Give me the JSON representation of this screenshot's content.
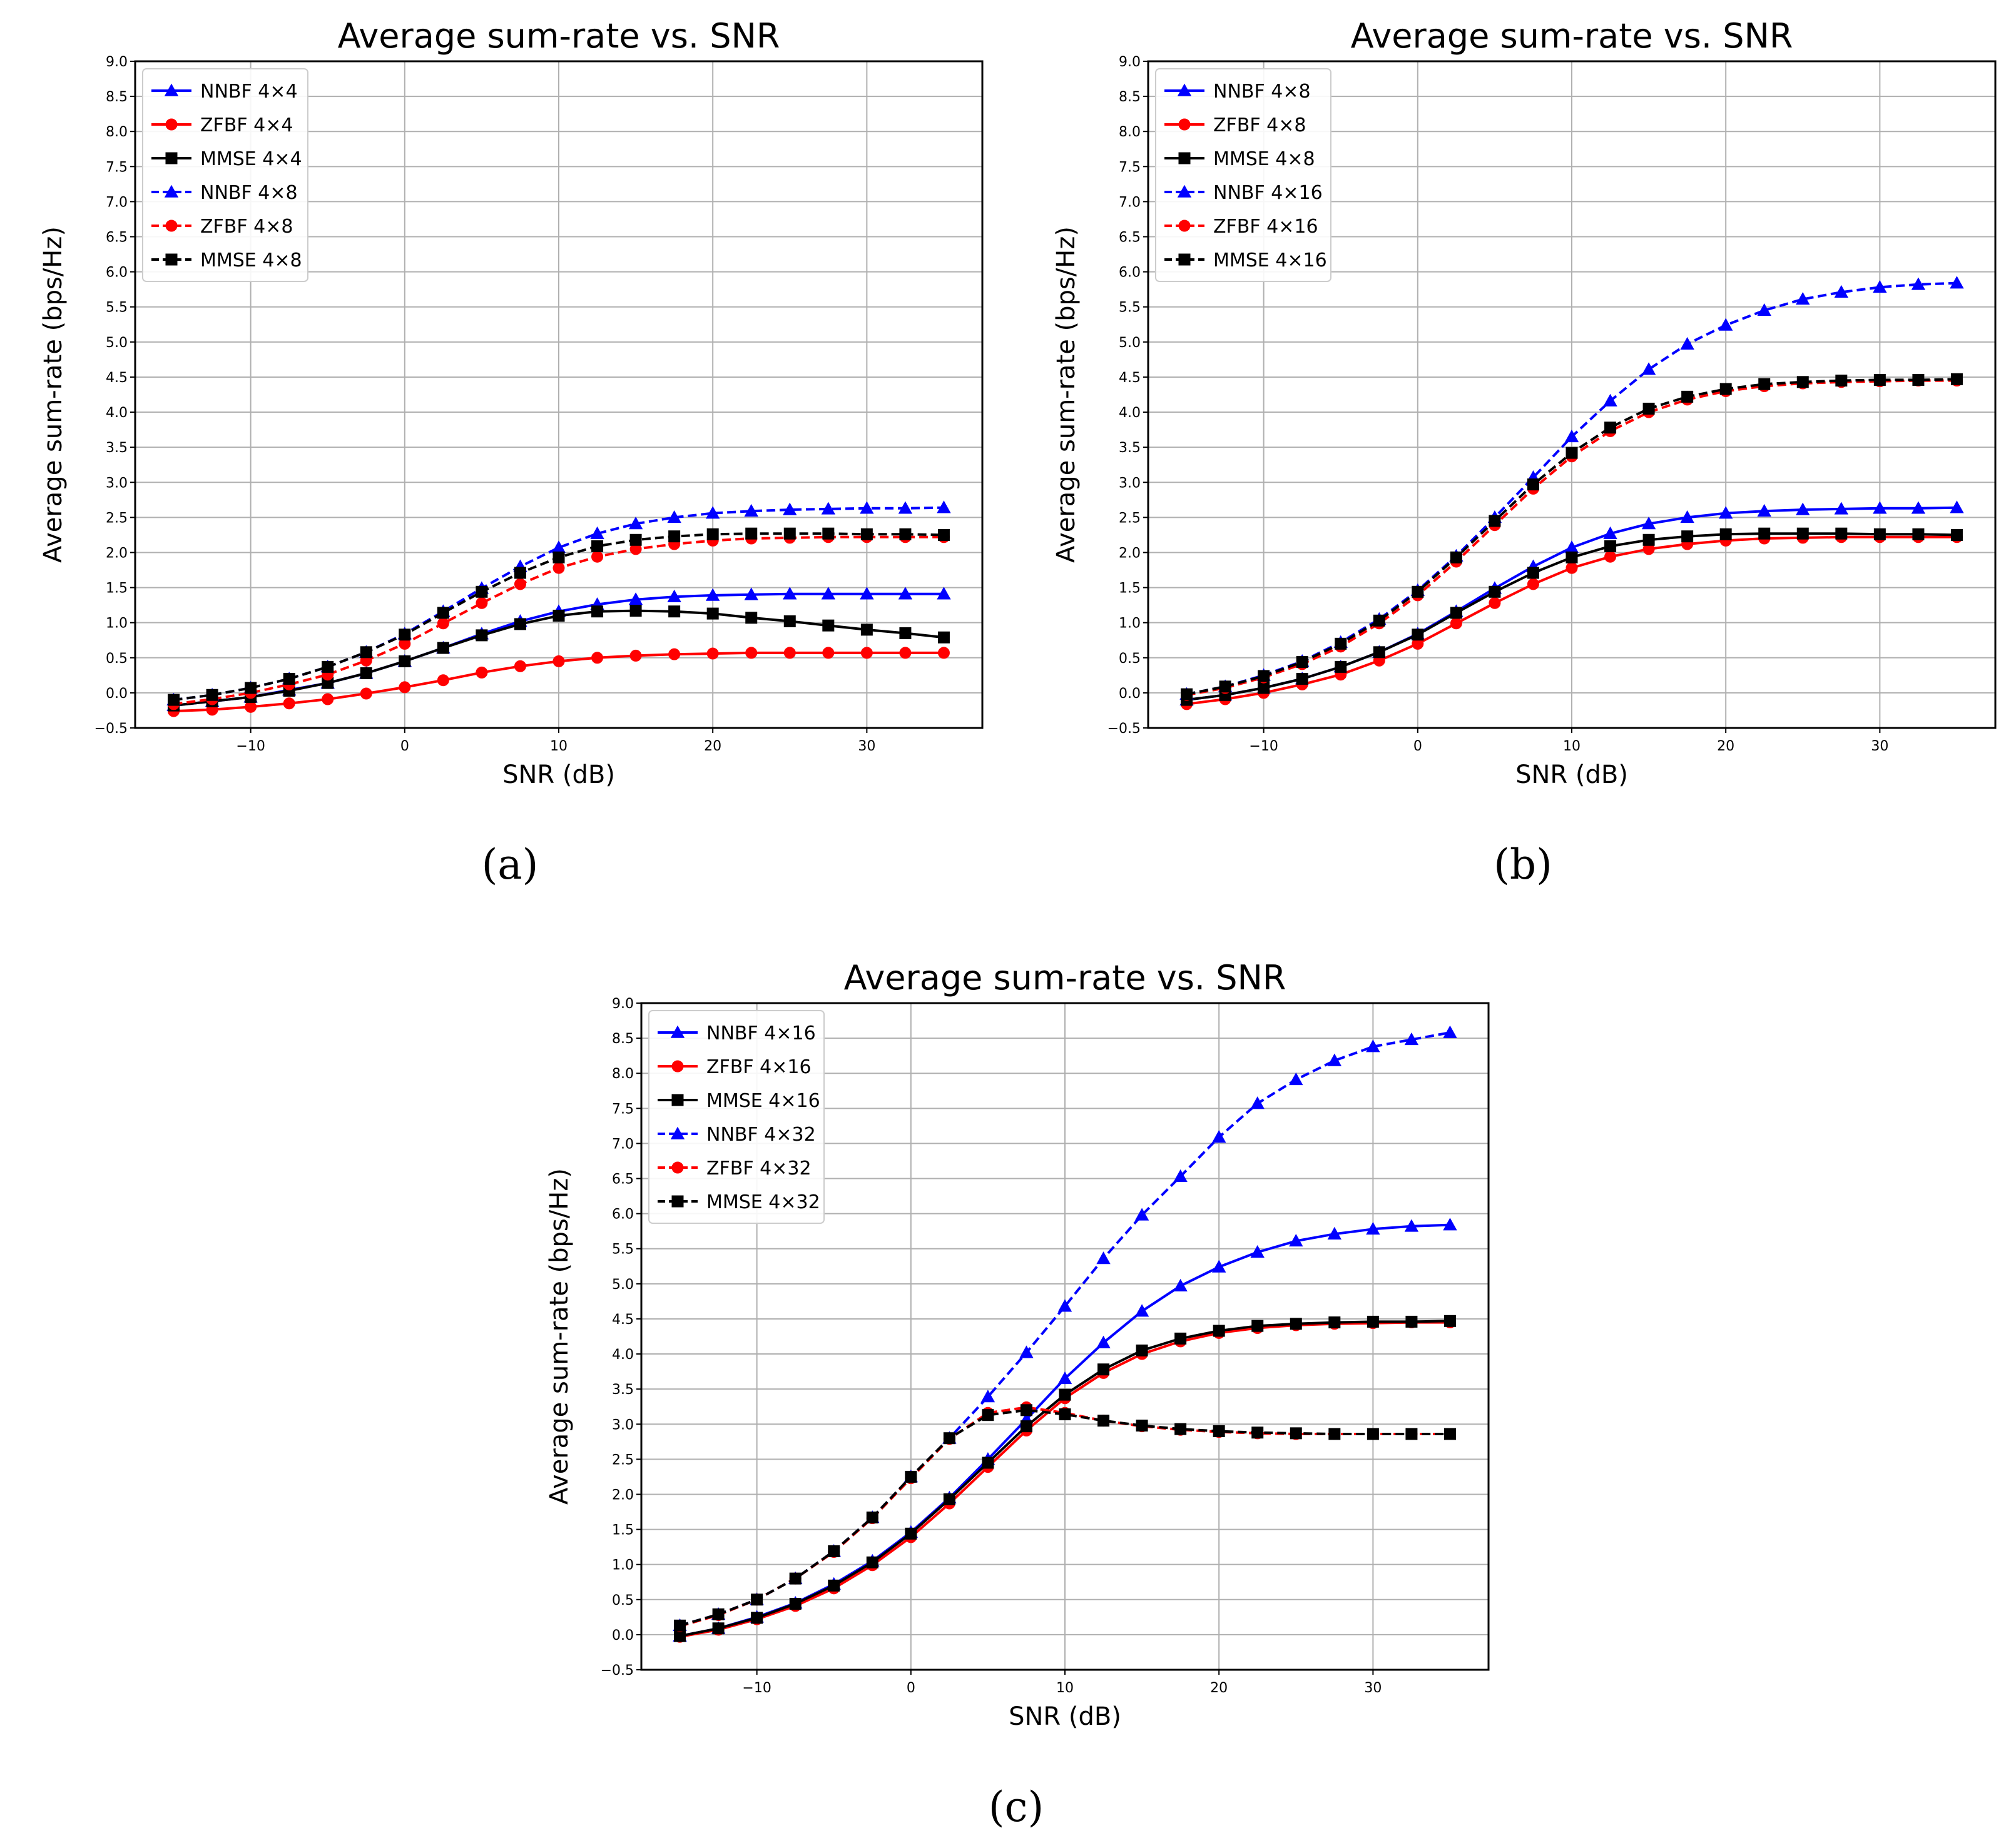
{
  "chart_data": [
    {
      "type": "line",
      "panel_label": "(a)",
      "title": "Average sum-rate vs. SNR",
      "xlabel": "SNR (dB)",
      "ylabel": "Average sum-rate (bps/Hz)",
      "xlim": [
        -17.5,
        37.5
      ],
      "ylim": [
        -0.5,
        9.0
      ],
      "xticks": [
        -10,
        0,
        10,
        20,
        30
      ],
      "xtick_labels": [
        "−10",
        "0",
        "10",
        "20",
        "30"
      ],
      "yticks": [
        -0.5,
        0.0,
        0.5,
        1.0,
        1.5,
        2.0,
        2.5,
        3.0,
        3.5,
        4.0,
        4.5,
        5.0,
        5.5,
        6.0,
        6.5,
        7.0,
        7.5,
        8.0,
        8.5,
        9.0
      ],
      "ytick_labels": [
        "−0.5",
        "0.0",
        "0.5",
        "1.0",
        "1.5",
        "2.0",
        "2.5",
        "3.0",
        "3.5",
        "4.0",
        "4.5",
        "5.0",
        "5.5",
        "6.0",
        "6.5",
        "7.0",
        "7.5",
        "8.0",
        "8.5",
        "9.0"
      ],
      "grid": true,
      "legend_position": "top-left",
      "x": [
        -15,
        -12.5,
        -10,
        -7.5,
        -5,
        -2.5,
        0,
        2.5,
        5,
        7.5,
        10,
        12.5,
        15,
        17.5,
        20,
        22.5,
        25,
        27.5,
        30,
        32.5,
        35
      ],
      "series": [
        {
          "name": "NNBF 4×4",
          "color": "#0000ff",
          "linestyle": "solid",
          "marker": "triangle",
          "values": [
            -0.18,
            -0.12,
            -0.06,
            0.04,
            0.14,
            0.28,
            0.45,
            0.64,
            0.84,
            1.02,
            1.16,
            1.26,
            1.33,
            1.37,
            1.39,
            1.4,
            1.41,
            1.41,
            1.41,
            1.41,
            1.41
          ]
        },
        {
          "name": "ZFBF 4×4",
          "color": "#ff0000",
          "linestyle": "solid",
          "marker": "circle",
          "values": [
            -0.26,
            -0.24,
            -0.2,
            -0.15,
            -0.09,
            -0.01,
            0.08,
            0.18,
            0.29,
            0.38,
            0.45,
            0.5,
            0.53,
            0.55,
            0.56,
            0.57,
            0.57,
            0.57,
            0.57,
            0.57,
            0.57
          ]
        },
        {
          "name": "MMSE 4×4",
          "color": "#000000",
          "linestyle": "solid",
          "marker": "square",
          "values": [
            -0.18,
            -0.12,
            -0.06,
            0.03,
            0.14,
            0.28,
            0.45,
            0.64,
            0.82,
            0.98,
            1.1,
            1.16,
            1.17,
            1.16,
            1.13,
            1.07,
            1.02,
            0.96,
            0.9,
            0.85,
            0.79
          ]
        },
        {
          "name": "NNBF 4×8",
          "color": "#0000ff",
          "linestyle": "dashed",
          "marker": "triangle",
          "values": [
            -0.1,
            -0.03,
            0.07,
            0.2,
            0.37,
            0.58,
            0.84,
            1.16,
            1.49,
            1.8,
            2.07,
            2.27,
            2.41,
            2.5,
            2.56,
            2.59,
            2.61,
            2.62,
            2.63,
            2.63,
            2.64
          ]
        },
        {
          "name": "ZFBF 4×8",
          "color": "#ff0000",
          "linestyle": "dashed",
          "marker": "circle",
          "values": [
            -0.16,
            -0.09,
            0.0,
            0.12,
            0.26,
            0.46,
            0.7,
            0.99,
            1.28,
            1.55,
            1.78,
            1.94,
            2.05,
            2.12,
            2.17,
            2.2,
            2.21,
            2.22,
            2.22,
            2.22,
            2.22
          ]
        },
        {
          "name": "MMSE 4×8",
          "color": "#000000",
          "linestyle": "dashed",
          "marker": "square",
          "values": [
            -0.1,
            -0.03,
            0.07,
            0.2,
            0.37,
            0.58,
            0.83,
            1.14,
            1.44,
            1.71,
            1.93,
            2.09,
            2.18,
            2.23,
            2.26,
            2.27,
            2.27,
            2.27,
            2.26,
            2.26,
            2.25
          ]
        }
      ]
    },
    {
      "type": "line",
      "panel_label": "(b)",
      "title": "Average sum-rate vs. SNR",
      "xlabel": "SNR (dB)",
      "ylabel": "Average sum-rate (bps/Hz)",
      "xlim": [
        -17.5,
        37.5
      ],
      "ylim": [
        -0.5,
        9.0
      ],
      "xticks": [
        -10,
        0,
        10,
        20,
        30
      ],
      "xtick_labels": [
        "−10",
        "0",
        "10",
        "20",
        "30"
      ],
      "yticks": [
        -0.5,
        0.0,
        0.5,
        1.0,
        1.5,
        2.0,
        2.5,
        3.0,
        3.5,
        4.0,
        4.5,
        5.0,
        5.5,
        6.0,
        6.5,
        7.0,
        7.5,
        8.0,
        8.5,
        9.0
      ],
      "ytick_labels": [
        "−0.5",
        "0.0",
        "0.5",
        "1.0",
        "1.5",
        "2.0",
        "2.5",
        "3.0",
        "3.5",
        "4.0",
        "4.5",
        "5.0",
        "5.5",
        "6.0",
        "6.5",
        "7.0",
        "7.5",
        "8.0",
        "8.5",
        "9.0"
      ],
      "grid": true,
      "legend_position": "top-left",
      "x": [
        -15,
        -12.5,
        -10,
        -7.5,
        -5,
        -2.5,
        0,
        2.5,
        5,
        7.5,
        10,
        12.5,
        15,
        17.5,
        20,
        22.5,
        25,
        27.5,
        30,
        32.5,
        35
      ],
      "series": [
        {
          "name": "NNBF 4×8",
          "color": "#0000ff",
          "linestyle": "solid",
          "marker": "triangle",
          "values": [
            -0.1,
            -0.03,
            0.07,
            0.2,
            0.37,
            0.58,
            0.84,
            1.16,
            1.49,
            1.8,
            2.07,
            2.27,
            2.41,
            2.5,
            2.56,
            2.59,
            2.61,
            2.62,
            2.63,
            2.63,
            2.64
          ]
        },
        {
          "name": "ZFBF 4×8",
          "color": "#ff0000",
          "linestyle": "solid",
          "marker": "circle",
          "values": [
            -0.16,
            -0.09,
            0.0,
            0.12,
            0.26,
            0.46,
            0.7,
            0.99,
            1.28,
            1.55,
            1.78,
            1.94,
            2.05,
            2.12,
            2.17,
            2.2,
            2.21,
            2.22,
            2.22,
            2.22,
            2.22
          ]
        },
        {
          "name": "MMSE 4×8",
          "color": "#000000",
          "linestyle": "solid",
          "marker": "square",
          "values": [
            -0.1,
            -0.03,
            0.07,
            0.2,
            0.37,
            0.58,
            0.83,
            1.14,
            1.44,
            1.71,
            1.93,
            2.09,
            2.18,
            2.23,
            2.26,
            2.27,
            2.27,
            2.27,
            2.26,
            2.26,
            2.25
          ]
        },
        {
          "name": "NNBF 4×16",
          "color": "#0000ff",
          "linestyle": "dashed",
          "marker": "triangle",
          "values": [
            -0.02,
            0.09,
            0.25,
            0.45,
            0.72,
            1.05,
            1.46,
            1.95,
            2.5,
            3.07,
            3.65,
            4.16,
            4.61,
            4.97,
            5.24,
            5.45,
            5.61,
            5.71,
            5.78,
            5.82,
            5.84
          ]
        },
        {
          "name": "ZFBF 4×16",
          "color": "#ff0000",
          "linestyle": "dashed",
          "marker": "circle",
          "values": [
            -0.03,
            0.07,
            0.22,
            0.41,
            0.66,
            0.99,
            1.39,
            1.87,
            2.39,
            2.91,
            3.37,
            3.73,
            4.0,
            4.18,
            4.3,
            4.37,
            4.41,
            4.43,
            4.44,
            4.45,
            4.45
          ]
        },
        {
          "name": "MMSE 4×16",
          "color": "#000000",
          "linestyle": "dashed",
          "marker": "square",
          "values": [
            -0.02,
            0.09,
            0.24,
            0.44,
            0.7,
            1.03,
            1.44,
            1.93,
            2.45,
            2.97,
            3.42,
            3.78,
            4.05,
            4.22,
            4.33,
            4.4,
            4.43,
            4.45,
            4.46,
            4.46,
            4.47
          ]
        }
      ]
    },
    {
      "type": "line",
      "panel_label": "(c)",
      "title": "Average sum-rate vs. SNR",
      "xlabel": "SNR (dB)",
      "ylabel": "Average sum-rate (bps/Hz)",
      "xlim": [
        -17.5,
        37.5
      ],
      "ylim": [
        -0.5,
        9.0
      ],
      "xticks": [
        -10,
        0,
        10,
        20,
        30
      ],
      "xtick_labels": [
        "−10",
        "0",
        "10",
        "20",
        "30"
      ],
      "yticks": [
        -0.5,
        0.0,
        0.5,
        1.0,
        1.5,
        2.0,
        2.5,
        3.0,
        3.5,
        4.0,
        4.5,
        5.0,
        5.5,
        6.0,
        6.5,
        7.0,
        7.5,
        8.0,
        8.5,
        9.0
      ],
      "ytick_labels": [
        "−0.5",
        "0.0",
        "0.5",
        "1.0",
        "1.5",
        "2.0",
        "2.5",
        "3.0",
        "3.5",
        "4.0",
        "4.5",
        "5.0",
        "5.5",
        "6.0",
        "6.5",
        "7.0",
        "7.5",
        "8.0",
        "8.5",
        "9.0"
      ],
      "grid": true,
      "legend_position": "top-left",
      "x": [
        -15,
        -12.5,
        -10,
        -7.5,
        -5,
        -2.5,
        0,
        2.5,
        5,
        7.5,
        10,
        12.5,
        15,
        17.5,
        20,
        22.5,
        25,
        27.5,
        30,
        32.5,
        35
      ],
      "series": [
        {
          "name": "NNBF 4×16",
          "color": "#0000ff",
          "linestyle": "solid",
          "marker": "triangle",
          "values": [
            -0.02,
            0.09,
            0.25,
            0.45,
            0.72,
            1.05,
            1.46,
            1.95,
            2.5,
            3.07,
            3.65,
            4.16,
            4.61,
            4.97,
            5.24,
            5.45,
            5.61,
            5.71,
            5.78,
            5.82,
            5.84
          ]
        },
        {
          "name": "ZFBF 4×16",
          "color": "#ff0000",
          "linestyle": "solid",
          "marker": "circle",
          "values": [
            -0.03,
            0.07,
            0.22,
            0.41,
            0.66,
            0.99,
            1.39,
            1.87,
            2.39,
            2.91,
            3.37,
            3.73,
            4.0,
            4.18,
            4.3,
            4.37,
            4.41,
            4.43,
            4.44,
            4.45,
            4.45
          ]
        },
        {
          "name": "MMSE 4×16",
          "color": "#000000",
          "linestyle": "solid",
          "marker": "square",
          "values": [
            -0.02,
            0.09,
            0.24,
            0.44,
            0.7,
            1.03,
            1.44,
            1.93,
            2.45,
            2.97,
            3.42,
            3.78,
            4.05,
            4.22,
            4.33,
            4.4,
            4.43,
            4.45,
            4.46,
            4.46,
            4.47
          ]
        },
        {
          "name": "NNBF 4×32",
          "color": "#0000ff",
          "linestyle": "dashed",
          "marker": "triangle",
          "values": [
            0.13,
            0.29,
            0.5,
            0.8,
            1.19,
            1.67,
            2.25,
            2.8,
            3.39,
            4.02,
            4.68,
            5.36,
            5.98,
            6.53,
            7.09,
            7.57,
            7.91,
            8.18,
            8.38,
            8.48,
            8.58
          ]
        },
        {
          "name": "ZFBF 4×32",
          "color": "#ff0000",
          "linestyle": "dashed",
          "marker": "circle",
          "values": [
            0.12,
            0.28,
            0.5,
            0.8,
            1.18,
            1.66,
            2.23,
            2.79,
            3.16,
            3.24,
            3.16,
            3.05,
            2.97,
            2.92,
            2.89,
            2.87,
            2.86,
            2.86,
            2.86,
            2.86,
            2.86
          ]
        },
        {
          "name": "MMSE 4×32",
          "color": "#000000",
          "linestyle": "dashed",
          "marker": "square",
          "values": [
            0.13,
            0.29,
            0.5,
            0.8,
            1.19,
            1.67,
            2.25,
            2.8,
            3.13,
            3.2,
            3.14,
            3.05,
            2.98,
            2.93,
            2.9,
            2.88,
            2.87,
            2.86,
            2.86,
            2.86,
            2.86
          ]
        }
      ]
    }
  ]
}
